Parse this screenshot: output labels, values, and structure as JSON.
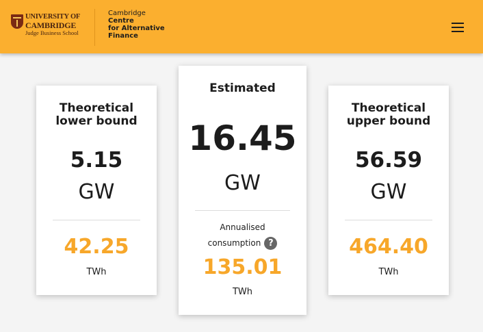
{
  "header": {
    "university": {
      "line1": "UNIVERSITY OF",
      "line2": "CAMBRIDGE",
      "line3": "Judge Business School"
    },
    "centre": {
      "line1": "Cambridge",
      "line2": "Centre",
      "line3": "for Alternative",
      "line4": "Finance"
    },
    "menu_icon": "hamburger-menu-icon",
    "background_color": "#fbaf2f"
  },
  "cards": {
    "lower": {
      "title_line1": "Theoretical",
      "title_line2": "lower bound",
      "power_value": "5.15",
      "power_unit": "GW",
      "energy_value": "42.25",
      "energy_unit": "TWh"
    },
    "estimated": {
      "title": "Estimated",
      "power_value": "16.45",
      "power_unit": "GW",
      "annual_label_line1": "Annualised",
      "annual_label_line2": "consumption",
      "help_icon": "?",
      "energy_value": "135.01",
      "energy_unit": "TWh"
    },
    "upper": {
      "title_line1": "Theoretical",
      "title_line2": "upper bound",
      "power_value": "56.59",
      "power_unit": "GW",
      "energy_value": "464.40",
      "energy_unit": "TWh"
    }
  },
  "colors": {
    "accent": "#f7a72a",
    "text": "#1c1c1c",
    "background": "#f4f4f4"
  }
}
